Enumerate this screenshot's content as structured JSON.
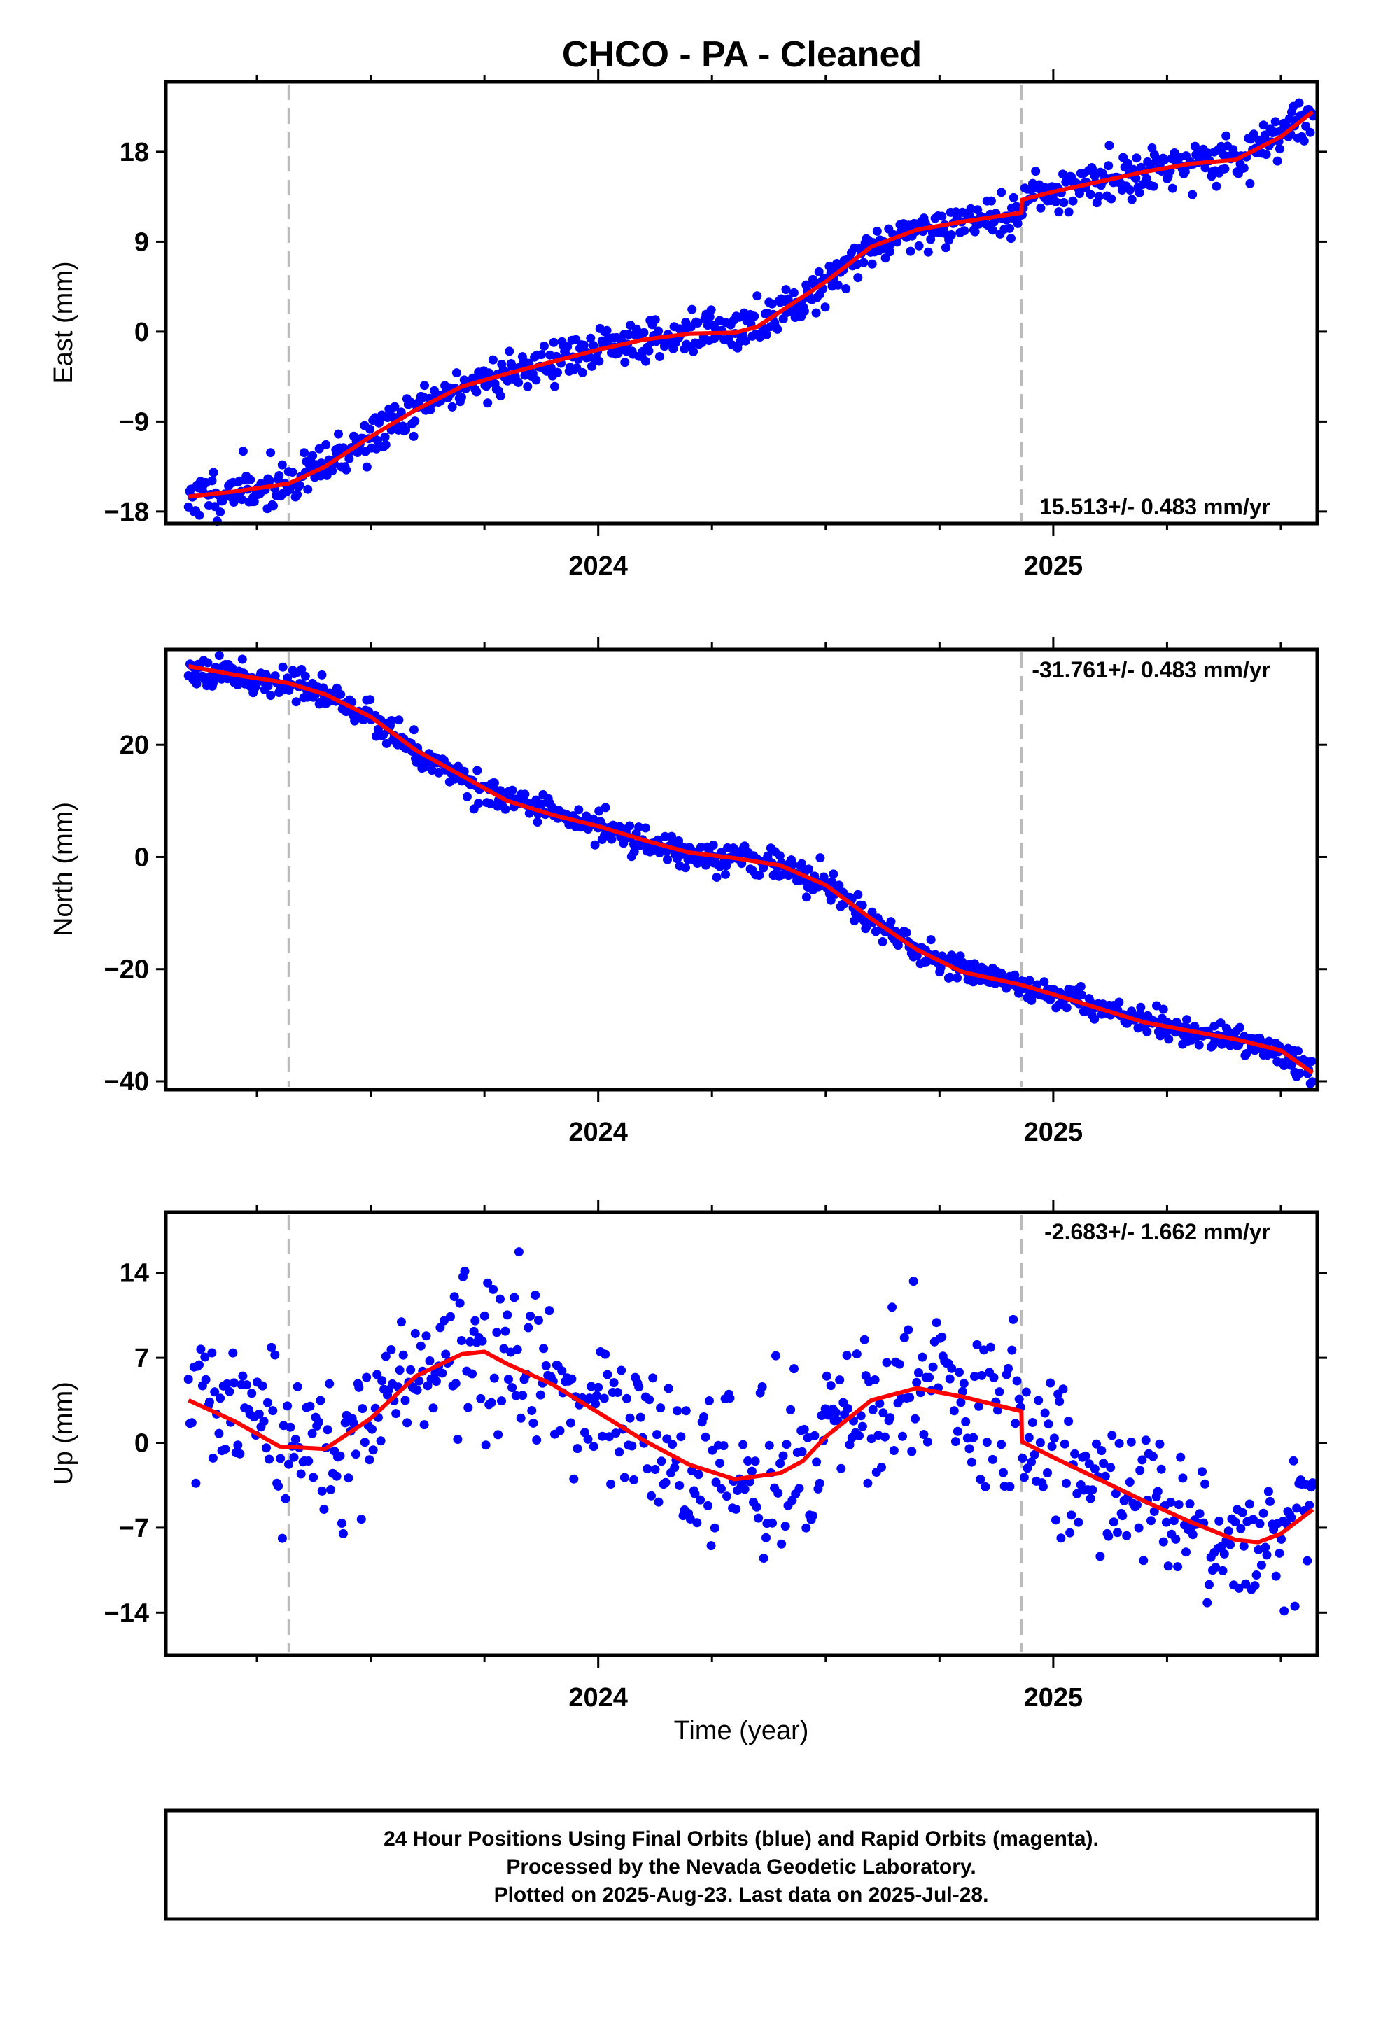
{
  "title": "CHCO  - PA - Cleaned",
  "xlabel": "Time (year)",
  "footer": {
    "line1": "24 Hour Positions Using Final Orbits (blue) and Rapid Orbits (magenta).",
    "line2": "Processed by the Nevada Geodetic Laboratory.",
    "line3": "Plotted on 2025-Aug-23. Last data on 2025-Jul-28."
  },
  "colors": {
    "points": "#0000ff",
    "model": "#ff0000",
    "steps": "#bbbbbb",
    "frame": "#000000"
  },
  "chart_data": [
    {
      "type": "scatter",
      "ylabel": "East (mm)",
      "rate_label": "15.513+/- 0.483 mm/yr",
      "xlim": [
        2023.05,
        2025.58
      ],
      "ylim": [
        -19.2,
        25
      ],
      "yticks": [
        -18,
        -9,
        0,
        9,
        18
      ],
      "xticks": [
        2024,
        2025
      ],
      "x_minor_ticks": [
        2023.25,
        2023.5,
        2023.75,
        2024.25,
        2024.5,
        2024.75,
        2025.25,
        2025.5
      ],
      "step_lines": [
        2023.32,
        2024.93
      ],
      "model": {
        "x": [
          2023.1,
          2023.2,
          2023.32,
          2023.4,
          2023.5,
          2023.6,
          2023.7,
          2023.8,
          2023.9,
          2024.0,
          2024.1,
          2024.2,
          2024.3,
          2024.35,
          2024.4,
          2024.5,
          2024.6,
          2024.7,
          2024.8,
          2024.93,
          2024.931,
          2025.0,
          2025.1,
          2025.2,
          2025.3,
          2025.4,
          2025.5,
          2025.57
        ],
        "y": [
          -16.5,
          -16.0,
          -15.2,
          -13.5,
          -10.5,
          -7.8,
          -5.5,
          -4.2,
          -3.0,
          -1.8,
          -0.8,
          -0.2,
          -0.1,
          0.5,
          2.0,
          5.0,
          8.5,
          10.2,
          11.0,
          11.9,
          13.2,
          14.0,
          15.0,
          16.0,
          16.8,
          17.2,
          19.5,
          22.0
        ]
      },
      "scatter_seed": 11,
      "scatter_noise": 1.1
    },
    {
      "type": "scatter",
      "ylabel": "North (mm)",
      "rate_label": "-31.761+/- 0.483 mm/yr",
      "xlim": [
        2023.05,
        2025.58
      ],
      "ylim": [
        -41.5,
        37
      ],
      "yticks": [
        -40,
        -20,
        0,
        20
      ],
      "xticks": [
        2024,
        2025
      ],
      "x_minor_ticks": [
        2023.25,
        2023.5,
        2023.75,
        2024.25,
        2024.5,
        2024.75,
        2025.25,
        2025.5
      ],
      "step_lines": [
        2023.32,
        2024.93
      ],
      "model": {
        "x": [
          2023.1,
          2023.2,
          2023.32,
          2023.4,
          2023.5,
          2023.6,
          2023.7,
          2023.8,
          2023.9,
          2024.0,
          2024.1,
          2024.2,
          2024.3,
          2024.4,
          2024.5,
          2024.6,
          2024.7,
          2024.8,
          2024.93,
          2025.0,
          2025.1,
          2025.2,
          2025.3,
          2025.4,
          2025.5,
          2025.57
        ],
        "y": [
          34,
          32.5,
          31,
          29,
          25,
          19,
          14.5,
          10,
          7.5,
          5.5,
          3,
          0.8,
          -0.2,
          -1.5,
          -5,
          -11,
          -16.5,
          -20.5,
          -22.8,
          -24.5,
          -27,
          -29.5,
          -31,
          -32.5,
          -34.5,
          -38.5
        ]
      },
      "scatter_seed": 23,
      "scatter_noise": 1.3
    },
    {
      "type": "scatter",
      "ylabel": "Up (mm)",
      "rate_label": "-2.683+/- 1.662 mm/yr",
      "xlim": [
        2023.05,
        2025.58
      ],
      "ylim": [
        -17.5,
        19
      ],
      "yticks": [
        -14,
        -7,
        0,
        7,
        14
      ],
      "xticks": [
        2024,
        2025
      ],
      "x_minor_ticks": [
        2023.25,
        2023.5,
        2023.75,
        2024.25,
        2024.5,
        2024.75,
        2025.25,
        2025.5
      ],
      "step_lines": [
        2023.32,
        2024.93
      ],
      "model": {
        "x": [
          2023.1,
          2023.2,
          2023.3,
          2023.4,
          2023.5,
          2023.6,
          2023.7,
          2023.75,
          2023.8,
          2023.9,
          2024.0,
          2024.1,
          2024.2,
          2024.3,
          2024.4,
          2024.45,
          2024.5,
          2024.6,
          2024.7,
          2024.8,
          2024.93,
          2024.931,
          2025.0,
          2025.1,
          2025.2,
          2025.3,
          2025.4,
          2025.45,
          2025.5,
          2025.57
        ],
        "y": [
          3.5,
          1.8,
          -0.3,
          -0.5,
          2.0,
          5.5,
          7.3,
          7.5,
          6.5,
          4.8,
          2.5,
          0.2,
          -1.8,
          -3.0,
          -2.5,
          -1.5,
          0.5,
          3.5,
          4.5,
          3.8,
          2.6,
          0.1,
          -1.2,
          -3.0,
          -4.8,
          -6.5,
          -8.0,
          -8.2,
          -7.5,
          -5.5
        ]
      },
      "scatter_seed": 37,
      "scatter_noise": 3.2
    }
  ]
}
